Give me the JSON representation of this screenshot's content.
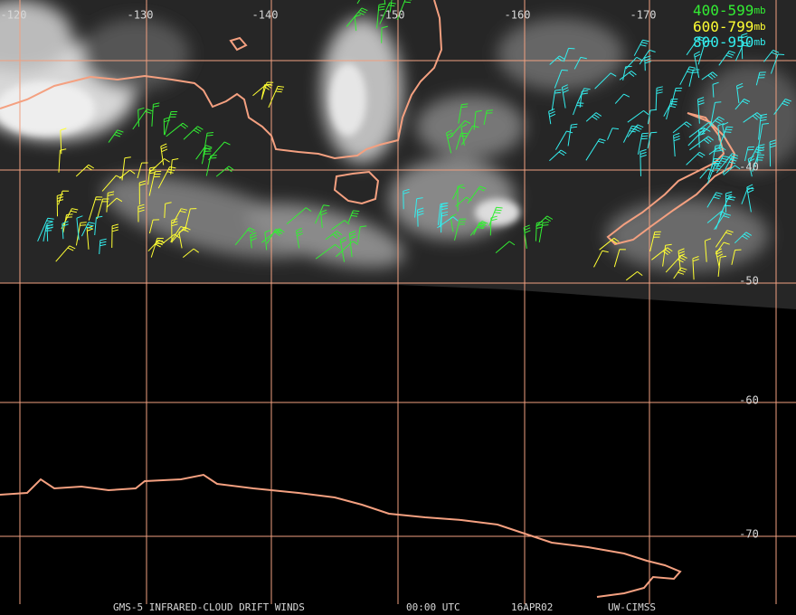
{
  "longitude_labels": [
    -120,
    -130,
    -140,
    -150,
    -160,
    -170
  ],
  "latitude_labels": [
    -40,
    -50,
    -60,
    -70
  ],
  "legend": [
    {
      "range": "400-599",
      "unit": "mb"
    },
    {
      "range": "600-799",
      "unit": "mb"
    },
    {
      "range": "800-950",
      "unit": "mb"
    }
  ],
  "footer": {
    "product": "GMS-5 INFRARED-CLOUD DRIFT WINDS",
    "time": "00:00 UTC",
    "date": "16APR02",
    "source": "UW-CIMSS"
  }
}
